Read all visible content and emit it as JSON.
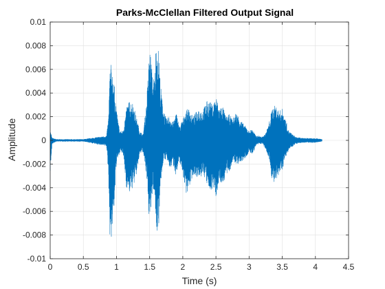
{
  "chart_data": {
    "type": "line",
    "title": "Parks-McClellan Filtered Output Signal",
    "xlabel": "Time (s)",
    "ylabel": "Amplitude",
    "xlim": [
      0,
      4.5
    ],
    "ylim": [
      -0.01,
      0.01
    ],
    "x_ticks": [
      0,
      0.5,
      1,
      1.5,
      2,
      2.5,
      3,
      3.5,
      4,
      4.5
    ],
    "x_tick_labels": [
      "0",
      "0.5",
      "1",
      "1.5",
      "2",
      "2.5",
      "3",
      "3.5",
      "4",
      "4.5"
    ],
    "y_ticks": [
      -0.01,
      -0.008,
      -0.006,
      -0.004,
      -0.002,
      0,
      0.002,
      0.004,
      0.006,
      0.008,
      0.01
    ],
    "y_tick_labels": [
      "-0.01",
      "-0.008",
      "-0.006",
      "-0.004",
      "-0.002",
      "0",
      "0.002",
      "0.004",
      "0.006",
      "0.008",
      "0.01"
    ],
    "grid": true,
    "colors": {
      "series": "#0072BD",
      "grid": "#dfdfdf",
      "axis": "#262626"
    },
    "series": [
      {
        "envelope": {
          "x": [
            0.0,
            0.03,
            0.1,
            0.5,
            0.85,
            0.88,
            0.9,
            0.92,
            0.95,
            0.98,
            1.0,
            1.05,
            1.1,
            1.15,
            1.2,
            1.25,
            1.3,
            1.35,
            1.4,
            1.45,
            1.5,
            1.52,
            1.55,
            1.58,
            1.6,
            1.62,
            1.64,
            1.66,
            1.7,
            1.75,
            1.8,
            1.85,
            1.9,
            1.95,
            2.0,
            2.05,
            2.1,
            2.15,
            2.2,
            2.25,
            2.3,
            2.35,
            2.4,
            2.45,
            2.5,
            2.55,
            2.6,
            2.65,
            2.7,
            2.75,
            2.8,
            2.85,
            2.9,
            2.95,
            3.0,
            3.05,
            3.1,
            3.15,
            3.2,
            3.25,
            3.3,
            3.35,
            3.4,
            3.45,
            3.5,
            3.55,
            3.6,
            3.7,
            3.8,
            4.0,
            4.1
          ],
          "upper": [
            0.0009,
            0.0002,
            0.0001,
            0.0001,
            0.0004,
            0.002,
            0.006,
            0.0065,
            0.0055,
            0.004,
            0.0025,
            0.0008,
            0.0008,
            0.0028,
            0.0034,
            0.0032,
            0.002,
            0.0008,
            0.0005,
            0.003,
            0.008,
            0.007,
            0.005,
            0.006,
            0.0088,
            0.008,
            0.0075,
            0.005,
            0.003,
            0.0018,
            0.0021,
            0.0015,
            0.0024,
            0.0012,
            0.0018,
            0.0026,
            0.0027,
            0.002,
            0.0024,
            0.0028,
            0.0025,
            0.0033,
            0.0034,
            0.003,
            0.0038,
            0.0028,
            0.003,
            0.002,
            0.0022,
            0.0018,
            0.0024,
            0.002,
            0.0015,
            0.0012,
            0.0008,
            0.001,
            0.0004,
            0.0004,
            0.0003,
            0.0006,
            0.0015,
            0.0028,
            0.003,
            0.0025,
            0.0027,
            0.0018,
            0.0008,
            0.0003,
            0.0002,
            0.0002,
            0.0001
          ],
          "lower": [
            -0.0028,
            -0.0003,
            -0.0001,
            -0.0001,
            -0.0005,
            -0.003,
            -0.008,
            -0.0085,
            -0.007,
            -0.004,
            -0.002,
            -0.001,
            -0.0012,
            -0.004,
            -0.0045,
            -0.004,
            -0.003,
            -0.0012,
            -0.001,
            -0.003,
            -0.0075,
            -0.006,
            -0.004,
            -0.005,
            -0.008,
            -0.0075,
            -0.007,
            -0.004,
            -0.002,
            -0.0015,
            -0.0025,
            -0.002,
            -0.003,
            -0.0018,
            -0.0028,
            -0.0045,
            -0.004,
            -0.003,
            -0.003,
            -0.0035,
            -0.0028,
            -0.0035,
            -0.0045,
            -0.004,
            -0.0048,
            -0.0035,
            -0.0038,
            -0.003,
            -0.0028,
            -0.0018,
            -0.002,
            -0.002,
            -0.0018,
            -0.0015,
            -0.001,
            -0.0012,
            -0.0005,
            -0.0003,
            -0.0003,
            -0.0008,
            -0.0015,
            -0.0035,
            -0.0038,
            -0.003,
            -0.0025,
            -0.0015,
            -0.0008,
            -0.0003,
            -0.0002,
            -0.0002,
            -0.0001
          ]
        }
      }
    ]
  }
}
